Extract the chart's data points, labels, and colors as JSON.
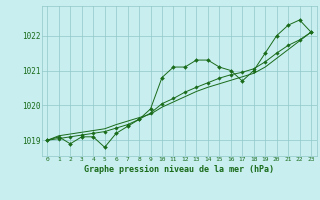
{
  "title": "Graphe pression niveau de la mer (hPa)",
  "bg_color": "#c8eef0",
  "grid_color": "#90c8c8",
  "line_color": "#1a6b1a",
  "marker_color": "#1a6b1a",
  "xlim": [
    -0.5,
    23.5
  ],
  "ylim": [
    1018.55,
    1022.85
  ],
  "xticks": [
    0,
    1,
    2,
    3,
    4,
    5,
    6,
    7,
    8,
    9,
    10,
    11,
    12,
    13,
    14,
    15,
    16,
    17,
    18,
    19,
    20,
    21,
    22,
    23
  ],
  "yticks": [
    1019,
    1020,
    1021,
    1022
  ],
  "series1": [
    1019.0,
    1019.1,
    1018.9,
    1019.1,
    1019.1,
    1018.8,
    1019.2,
    1019.4,
    1019.6,
    1019.9,
    1020.8,
    1021.1,
    1021.1,
    1021.3,
    1021.3,
    1021.1,
    1021.0,
    1020.7,
    1021.0,
    1021.5,
    1022.0,
    1022.3,
    1022.45,
    1022.1
  ],
  "series2": [
    1019.0,
    1019.13,
    1019.18,
    1019.23,
    1019.28,
    1019.33,
    1019.45,
    1019.55,
    1019.65,
    1019.75,
    1019.95,
    1020.1,
    1020.25,
    1020.4,
    1020.52,
    1020.62,
    1020.72,
    1020.82,
    1020.92,
    1021.1,
    1021.35,
    1021.6,
    1021.85,
    1022.1
  ],
  "series3": [
    1019.0,
    1019.05,
    1019.1,
    1019.15,
    1019.2,
    1019.25,
    1019.35,
    1019.45,
    1019.6,
    1019.78,
    1020.05,
    1020.2,
    1020.38,
    1020.52,
    1020.65,
    1020.78,
    1020.88,
    1020.95,
    1021.05,
    1021.25,
    1021.5,
    1021.72,
    1021.88,
    1022.1
  ]
}
